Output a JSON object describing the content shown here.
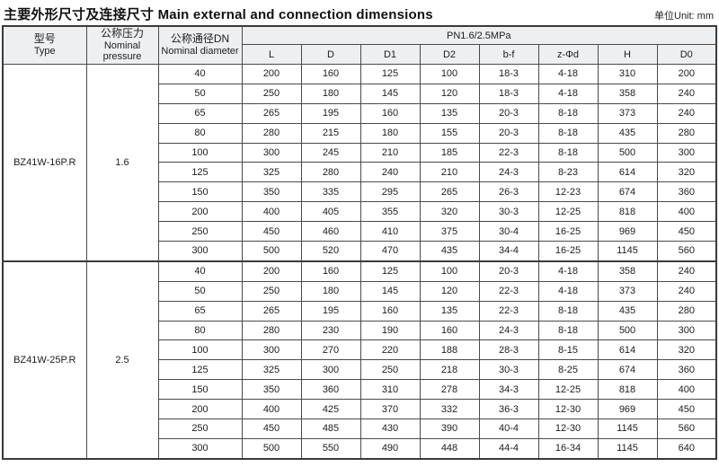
{
  "title": "主要外形尺寸及连接尺寸 Main external and connection dimensions",
  "unit_label": "单位Unit: mm",
  "colors": {
    "header_bg": "#edeff1",
    "border": "#4a4a4a",
    "outer_border": "#3a3a3a",
    "text": "#1c1c1c"
  },
  "table": {
    "col_headers_left": [
      {
        "zh": "型号",
        "en": "Type"
      },
      {
        "zh": "公称压力",
        "en": "Nominal pressure"
      },
      {
        "zh": "公称通径DN",
        "en": "Nominal diameter"
      }
    ],
    "pressure_group_header": "PN1.6/2.5MPa",
    "dim_headers": [
      "L",
      "D",
      "D1",
      "D2",
      "b-f",
      "z-Φd",
      "H",
      "D0"
    ],
    "blocks": [
      {
        "type": "BZ41W-16P.R",
        "nominal_pressure": "1.6",
        "rows": [
          [
            "40",
            "200",
            "160",
            "125",
            "100",
            "18-3",
            "4-18",
            "310",
            "200"
          ],
          [
            "50",
            "250",
            "180",
            "145",
            "120",
            "18-3",
            "4-18",
            "358",
            "240"
          ],
          [
            "65",
            "265",
            "195",
            "160",
            "135",
            "20-3",
            "8-18",
            "373",
            "240"
          ],
          [
            "80",
            "280",
            "215",
            "180",
            "155",
            "20-3",
            "8-18",
            "435",
            "280"
          ],
          [
            "100",
            "300",
            "245",
            "210",
            "185",
            "22-3",
            "8-18",
            "500",
            "300"
          ],
          [
            "125",
            "325",
            "280",
            "240",
            "210",
            "24-3",
            "8-23",
            "614",
            "320"
          ],
          [
            "150",
            "350",
            "335",
            "295",
            "265",
            "26-3",
            "12-23",
            "674",
            "360"
          ],
          [
            "200",
            "400",
            "405",
            "355",
            "320",
            "30-3",
            "12-25",
            "818",
            "400"
          ],
          [
            "250",
            "450",
            "460",
            "410",
            "375",
            "30-4",
            "16-25",
            "969",
            "450"
          ],
          [
            "300",
            "500",
            "520",
            "470",
            "435",
            "34-4",
            "16-25",
            "1145",
            "560"
          ]
        ]
      },
      {
        "type": "BZ41W-25P.R",
        "nominal_pressure": "2.5",
        "rows": [
          [
            "40",
            "200",
            "160",
            "125",
            "100",
            "20-3",
            "4-18",
            "358",
            "240"
          ],
          [
            "50",
            "250",
            "180",
            "145",
            "120",
            "22-3",
            "4-18",
            "373",
            "240"
          ],
          [
            "65",
            "265",
            "195",
            "160",
            "135",
            "22-3",
            "8-18",
            "435",
            "280"
          ],
          [
            "80",
            "280",
            "230",
            "190",
            "160",
            "24-3",
            "8-18",
            "500",
            "300"
          ],
          [
            "100",
            "300",
            "270",
            "220",
            "188",
            "28-3",
            "8-15",
            "614",
            "320"
          ],
          [
            "125",
            "325",
            "300",
            "250",
            "218",
            "30-3",
            "8-25",
            "674",
            "360"
          ],
          [
            "150",
            "350",
            "360",
            "310",
            "278",
            "34-3",
            "12-25",
            "818",
            "400"
          ],
          [
            "200",
            "400",
            "425",
            "370",
            "332",
            "36-3",
            "12-30",
            "969",
            "450"
          ],
          [
            "250",
            "450",
            "485",
            "430",
            "390",
            "40-4",
            "12-30",
            "1145",
            "560"
          ],
          [
            "300",
            "500",
            "550",
            "490",
            "448",
            "44-4",
            "16-34",
            "1145",
            "640"
          ]
        ]
      }
    ]
  }
}
